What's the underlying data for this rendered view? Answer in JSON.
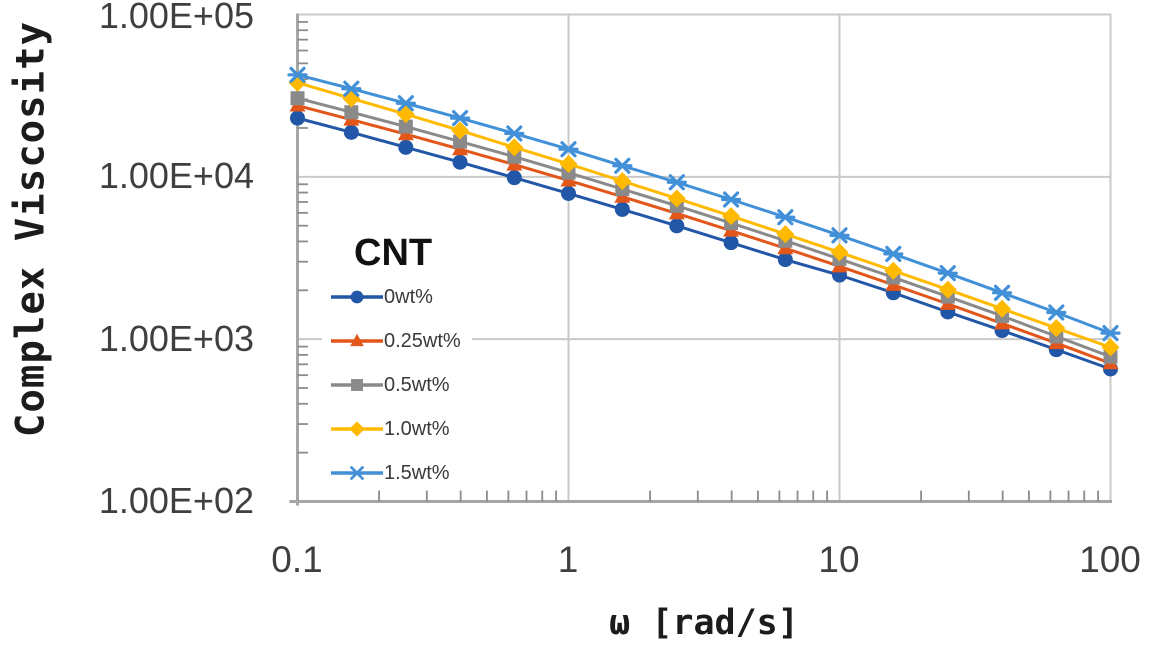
{
  "chart_data": {
    "type": "line",
    "title": "",
    "xlabel": "ω [rad/s]",
    "ylabel": "Complex Viscosity",
    "x_scale": "log",
    "y_scale": "log",
    "xlim": [
      0.1,
      100
    ],
    "ylim": [
      100,
      100000
    ],
    "grid": true,
    "x_ticks": [
      "0.1",
      "1",
      "10",
      "100"
    ],
    "y_ticks": [
      "1.00E+05",
      "1.00E+04",
      "1.00E+03",
      "1.00E+02"
    ],
    "legend_title": "CNT",
    "legend_position": "lower-left-inside",
    "x": [
      0.1,
      0.158,
      0.251,
      0.398,
      0.631,
      1,
      1.58,
      2.51,
      3.98,
      6.31,
      10,
      15.8,
      25.1,
      39.8,
      63.1,
      100
    ],
    "series": [
      {
        "name": "0wt%",
        "marker": "circle",
        "color": "#2256A7",
        "values": [
          23000,
          18800,
          15200,
          12300,
          9880,
          7900,
          6300,
          4990,
          3930,
          3090,
          2480,
          1930,
          1470,
          1130,
          862,
          655
        ]
      },
      {
        "name": "0.25wt%",
        "marker": "triangle",
        "color": "#E3561A",
        "values": [
          27500,
          22500,
          18300,
          14800,
          11900,
          9500,
          7540,
          5950,
          4660,
          3630,
          2810,
          2160,
          1650,
          1250,
          946,
          710
        ]
      },
      {
        "name": "0.5wt%",
        "marker": "square",
        "color": "#8A8A8A",
        "values": [
          30500,
          25000,
          20400,
          16500,
          13300,
          10600,
          8400,
          6630,
          5190,
          4040,
          3120,
          2400,
          1830,
          1390,
          1040,
          780
        ]
      },
      {
        "name": "1.0wt%",
        "marker": "diamond",
        "color": "#FFBA00",
        "values": [
          38000,
          30400,
          24300,
          19300,
          15200,
          12000,
          9410,
          7360,
          5730,
          4440,
          3430,
          2640,
          2020,
          1540,
          1170,
          890
        ]
      },
      {
        "name": "1.5wt%",
        "marker": "star",
        "color": "#4190D8",
        "values": [
          42500,
          34900,
          28400,
          23000,
          18500,
          14800,
          11700,
          9260,
          7250,
          5640,
          4360,
          3350,
          2550,
          1930,
          1460,
          1090
        ]
      }
    ],
    "colors": {
      "grid": "#C9C9C9",
      "spine": "#A6A6A6",
      "tick": "#8C8C8C"
    }
  }
}
